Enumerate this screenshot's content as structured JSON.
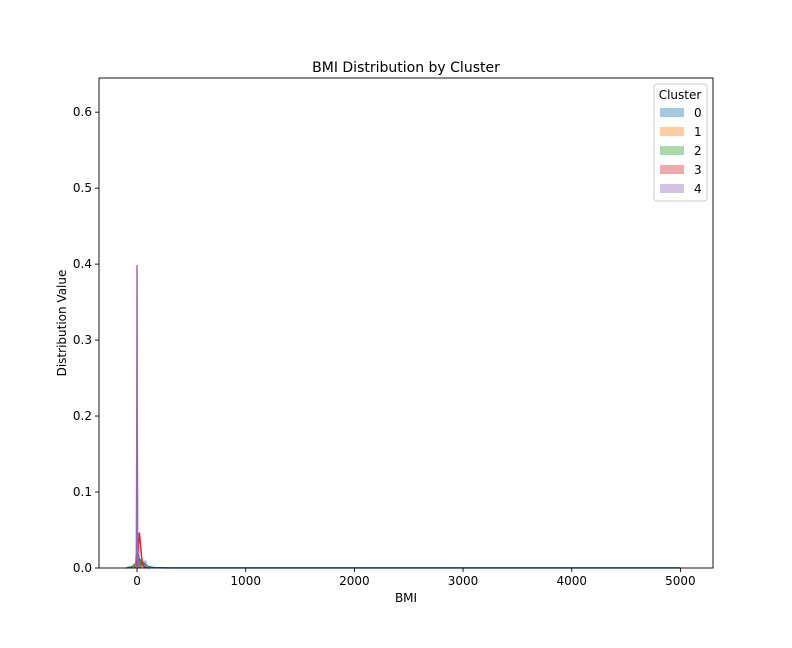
{
  "chart_data": {
    "type": "area",
    "title": "BMI Distribution by Cluster",
    "xlabel": "BMI",
    "ylabel": "Distribution Value",
    "xlim": [
      -350,
      5300
    ],
    "ylim": [
      0,
      0.645
    ],
    "xticks": [
      0,
      1000,
      2000,
      3000,
      4000,
      5000
    ],
    "xtick_labels": [
      "0",
      "1000",
      "2000",
      "3000",
      "4000",
      "5000"
    ],
    "yticks": [
      0.0,
      0.1,
      0.2,
      0.3,
      0.4,
      0.5,
      0.6
    ],
    "ytick_labels": [
      "0.0",
      "0.1",
      "0.2",
      "0.3",
      "0.4",
      "0.5",
      "0.6"
    ],
    "grid": false,
    "legend": {
      "title": "Cluster",
      "placement": "top-right",
      "entries": [
        "0",
        "1",
        "2",
        "3",
        "4"
      ]
    },
    "series": [
      {
        "name": "0",
        "color": "#1f77b4",
        "hist": [
          [
            -30,
            10,
            0.004
          ],
          [
            10,
            50,
            0.012
          ],
          [
            50,
            90,
            0.01
          ],
          [
            90,
            130,
            0.002
          ]
        ],
        "kde": [
          [
            -100,
            0
          ],
          [
            -40,
            0.002
          ],
          [
            0,
            0.008
          ],
          [
            20,
            0.012
          ],
          [
            50,
            0.008
          ],
          [
            100,
            0.002
          ],
          [
            160,
            0.0005
          ],
          [
            300,
            0.0002
          ],
          [
            1000,
            0.0001
          ],
          [
            3000,
            0.0001
          ],
          [
            5000,
            0.0001
          ]
        ]
      },
      {
        "name": "1",
        "color": "#ff7f0e",
        "hist": [
          [
            -5,
            15,
            0.015
          ],
          [
            15,
            35,
            0.008
          ]
        ],
        "kde": [
          [
            -60,
            0
          ],
          [
            -10,
            0.004
          ],
          [
            10,
            0.014
          ],
          [
            30,
            0.008
          ],
          [
            70,
            0.001
          ],
          [
            120,
            0
          ]
        ]
      },
      {
        "name": "2",
        "color": "#2ca02c",
        "hist": [
          [
            -5,
            15,
            0.02
          ],
          [
            15,
            35,
            0.006
          ]
        ],
        "kde": [
          [
            -60,
            0
          ],
          [
            -10,
            0.006
          ],
          [
            10,
            0.018
          ],
          [
            30,
            0.006
          ],
          [
            70,
            0.001
          ],
          [
            120,
            0
          ]
        ]
      },
      {
        "name": "3",
        "color": "#d62728",
        "hist": [
          [
            5,
            25,
            0.03
          ],
          [
            25,
            45,
            0.008
          ]
        ],
        "kde": [
          [
            -30,
            0
          ],
          [
            0,
            0.004
          ],
          [
            12,
            0.03
          ],
          [
            22,
            0.046
          ],
          [
            32,
            0.03
          ],
          [
            48,
            0.006
          ],
          [
            80,
            0
          ]
        ]
      },
      {
        "name": "4",
        "color": "#9467bd",
        "hist": [
          [
            -3,
            3,
            0.3
          ],
          [
            3,
            9,
            0.05
          ]
        ],
        "kde": [
          [
            -15,
            0
          ],
          [
            -6,
            0.02
          ],
          [
            -2,
            0.2
          ],
          [
            0,
            0.398
          ],
          [
            2,
            0.2
          ],
          [
            6,
            0.02
          ],
          [
            15,
            0
          ]
        ]
      }
    ]
  }
}
